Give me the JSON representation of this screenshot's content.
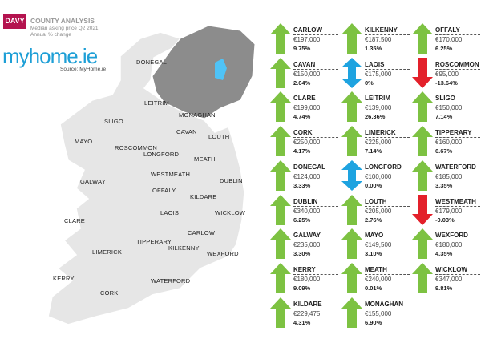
{
  "header": {
    "brand": "DAVY",
    "title": "COUNTY ANALYSIS",
    "subtitle1": "Median asking price Q2 2021",
    "subtitle2": "Annual % change",
    "logo": "myhome.ie",
    "source": "Source: MyHome.ie"
  },
  "colors": {
    "up": "#7dc242",
    "down": "#e3202a",
    "flat": "#1ea3e0",
    "map": "#e6e6e6",
    "northern_ireland": "#8c8c8c",
    "brand": "#b4134f"
  },
  "map_labels": [
    "DONEGAL",
    "LEITRIM",
    "MONAGHAN",
    "SLIGO",
    "CAVAN",
    "LOUTH",
    "MAYO",
    "ROSCOMMON",
    "LONGFORD",
    "MEATH",
    "GALWAY",
    "WESTMEATH",
    "DUBLIN",
    "OFFALY",
    "KILDARE",
    "CLARE",
    "LAOIS",
    "WICKLOW",
    "CARLOW",
    "TIPPERARY",
    "KILKENNY",
    "LIMERICK",
    "WEXFORD",
    "KERRY",
    "CORK",
    "WATERFORD"
  ],
  "counties": [
    {
      "name": "CARLOW",
      "price": "€197,000",
      "change": "9.75%",
      "trend": "up"
    },
    {
      "name": "CAVAN",
      "price": "€150,000",
      "change": "2.04%",
      "trend": "up"
    },
    {
      "name": "CLARE",
      "price": "€199,000",
      "change": "4.74%",
      "trend": "up"
    },
    {
      "name": "CORK",
      "price": "€250,000",
      "change": "4.17%",
      "trend": "up"
    },
    {
      "name": "DONEGAL",
      "price": "€124,000",
      "change": "3.33%",
      "trend": "up"
    },
    {
      "name": "DUBLIN",
      "price": "€340,000",
      "change": "6.25%",
      "trend": "up"
    },
    {
      "name": "GALWAY",
      "price": "€235,000",
      "change": "3.30%",
      "trend": "up"
    },
    {
      "name": "KERRY",
      "price": "€180,000",
      "change": "9.09%",
      "trend": "up"
    },
    {
      "name": "KILDARE",
      "price": "€229,475",
      "change": "4.31%",
      "trend": "up"
    },
    {
      "name": "KILKENNY",
      "price": "€187,500",
      "change": "1.35%",
      "trend": "up"
    },
    {
      "name": "LAOIS",
      "price": "€175,000",
      "change": "0%",
      "trend": "flat"
    },
    {
      "name": "LEITRIM",
      "price": "€139,000",
      "change": "26.36%",
      "trend": "up"
    },
    {
      "name": "LIMERICK",
      "price": "€225,000",
      "change": "7.14%",
      "trend": "up"
    },
    {
      "name": "LONGFORD",
      "price": "€100,000",
      "change": "0.00%",
      "trend": "flat"
    },
    {
      "name": "LOUTH",
      "price": "€205,000",
      "change": "2.76%",
      "trend": "up"
    },
    {
      "name": "MAYO",
      "price": "€149,500",
      "change": "3.10%",
      "trend": "up"
    },
    {
      "name": "MEATH",
      "price": "€240,000",
      "change": "0.01%",
      "trend": "up"
    },
    {
      "name": "MONAGHAN",
      "price": "€155,000",
      "change": "6.90%",
      "trend": "up"
    },
    {
      "name": "OFFALY",
      "price": "€170,000",
      "change": "6.25%",
      "trend": "up"
    },
    {
      "name": "ROSCOMMON",
      "price": "€95,000",
      "change": "-13.64%",
      "trend": "down"
    },
    {
      "name": "SLIGO",
      "price": "€150,000",
      "change": "7.14%",
      "trend": "up"
    },
    {
      "name": "TIPPERARY",
      "price": "€160,000",
      "change": "6.67%",
      "trend": "up"
    },
    {
      "name": "WATERFORD",
      "price": "€185,000",
      "change": "3.35%",
      "trend": "up"
    },
    {
      "name": "WESTMEATH",
      "price": "€179,000",
      "change": "-0.03%",
      "trend": "down"
    },
    {
      "name": "WEXFORD",
      "price": "€180,000",
      "change": "4.35%",
      "trend": "up"
    },
    {
      "name": "WICKLOW",
      "price": "€347,000",
      "change": "9.81%",
      "trend": "up"
    }
  ]
}
